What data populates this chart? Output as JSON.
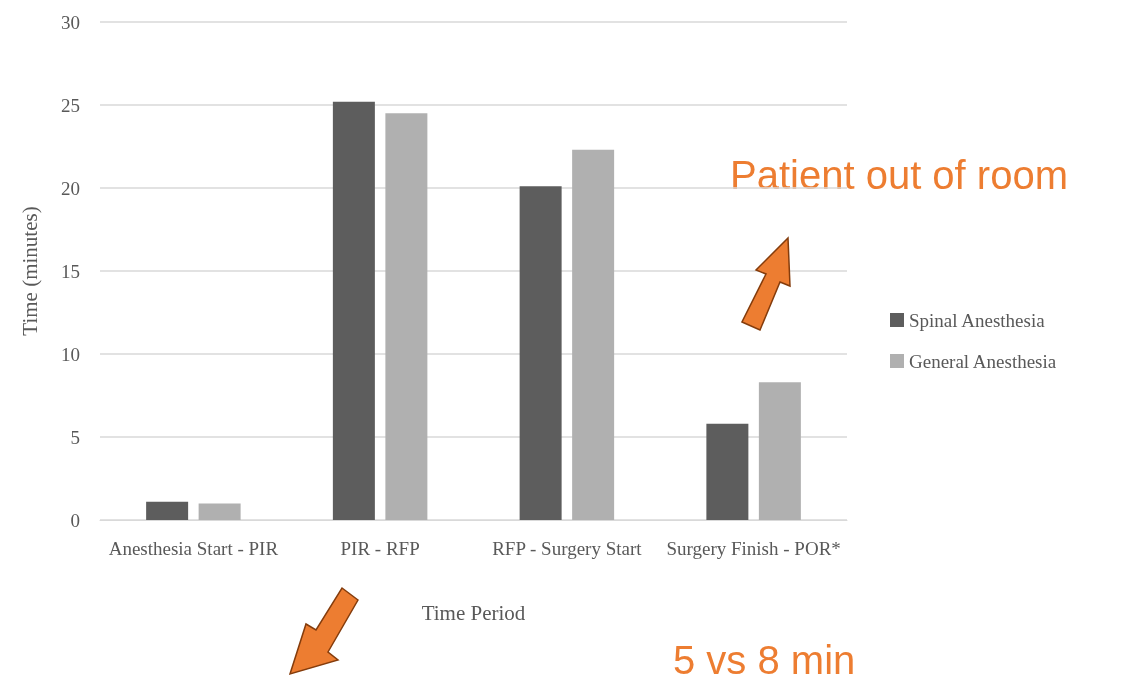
{
  "chart_data": {
    "type": "bar",
    "xlabel": "Time Period",
    "ylabel": "Time (minutes)",
    "categories": [
      "Anesthesia Start - PIR",
      "PIR - RFP",
      "RFP - Surgery Start",
      "Surgery Finish - POR*"
    ],
    "series": [
      {
        "name": "Spinal Anesthesia",
        "color": "#5d5d5d",
        "values": [
          1.1,
          25.2,
          20.1,
          5.8
        ]
      },
      {
        "name": "General Anesthesia",
        "color": "#b0b0b0",
        "values": [
          1.0,
          24.5,
          22.3,
          8.3
        ]
      }
    ],
    "ylim": [
      0,
      30
    ],
    "yticks": [
      0,
      5,
      10,
      15,
      20,
      25,
      30
    ],
    "grid": "y",
    "legend": "right",
    "annotations": [
      "Patient out of room",
      "5 vs 8 min"
    ]
  }
}
